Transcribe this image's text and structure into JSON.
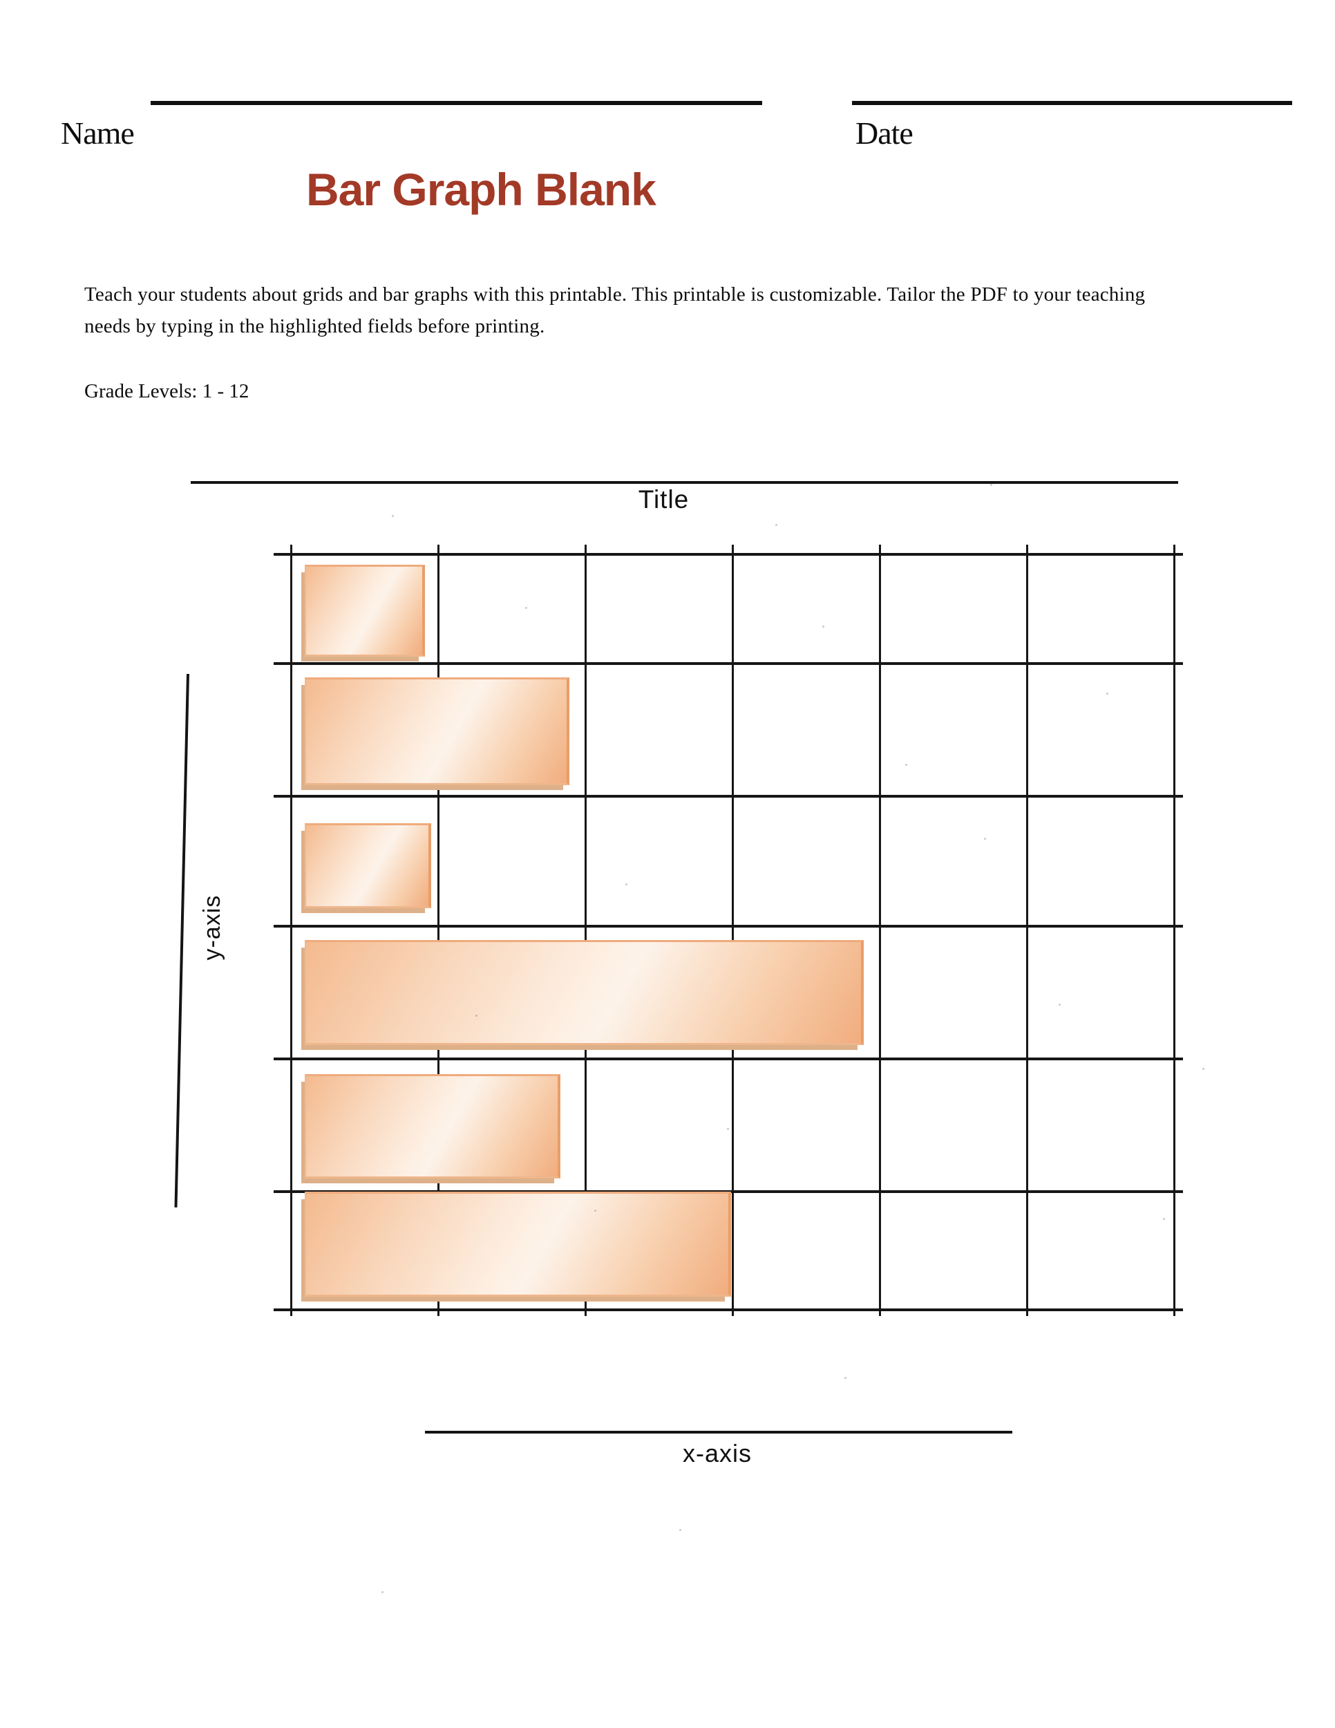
{
  "header": {
    "name_label": "Name",
    "date_label": "Date",
    "title": "Bar Graph Blank"
  },
  "intro": {
    "line1": "Teach your students about grids and bar graphs with this printable. This printable is customizable. Tailor the PDF to your teaching",
    "line2": "needs by typing in the highlighted fields before printing.",
    "grade_levels": "Grade Levels: 1 - 12"
  },
  "colors": {
    "title_accent": "#a23a27",
    "bar_highlight": "#fdf3ea",
    "bar_mid": "#f8d1b0",
    "bar_edge": "#f1ad7e",
    "bar_border": "#e89e6a",
    "bar_shadow": "#ddb089",
    "line": "#141414",
    "background": "#ffffff"
  },
  "chart_data": {
    "type": "bar",
    "orientation": "horizontal",
    "title": "Title",
    "xlabel": "x-axis",
    "ylabel": "y-axis",
    "categories": [
      "",
      "",
      "",
      "",
      "",
      ""
    ],
    "values": [
      0.79,
      1.77,
      0.83,
      3.77,
      1.71,
      2.87
    ],
    "xlim": [
      0,
      6
    ],
    "grid": true,
    "grid_columns": 6,
    "grid_rows": 6,
    "legend": false,
    "note": "blank worksheet chart: six unlabeled gradient-orange horizontal bars on a 6x6 grid; values measured in grid-cell units"
  }
}
